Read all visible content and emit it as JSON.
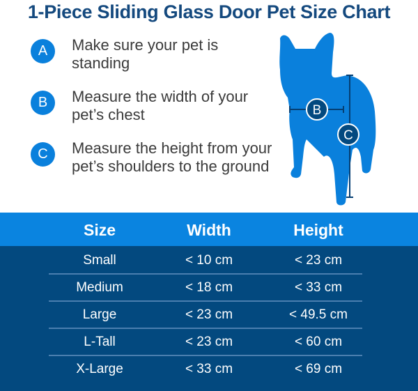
{
  "title": "1-Piece Sliding Glass Door Pet Size Chart",
  "colors": {
    "accent_blue": "#0a84e0",
    "navy": "#03497f",
    "title": "#14497e"
  },
  "steps": [
    {
      "letter": "A",
      "text": "Make sure your pet is standing"
    },
    {
      "letter": "B",
      "text": "Measure the width of your pet’s chest"
    },
    {
      "letter": "C",
      "text": "Measure the height from your pet’s shoulders to the ground"
    }
  ],
  "illustration": {
    "icon": "dog-silhouette-icon",
    "labels": [
      "B",
      "C"
    ]
  },
  "table": {
    "headers": [
      "Size",
      "Width",
      "Height"
    ],
    "rows": [
      [
        "Small",
        "< 10 cm",
        "< 23 cm"
      ],
      [
        "Medium",
        "< 18 cm",
        "< 33 cm"
      ],
      [
        "Large",
        "< 23 cm",
        "< 49.5 cm"
      ],
      [
        "L-Tall",
        "< 23 cm",
        "< 60 cm"
      ],
      [
        "X-Large",
        "< 33 cm",
        "< 69 cm"
      ]
    ]
  }
}
